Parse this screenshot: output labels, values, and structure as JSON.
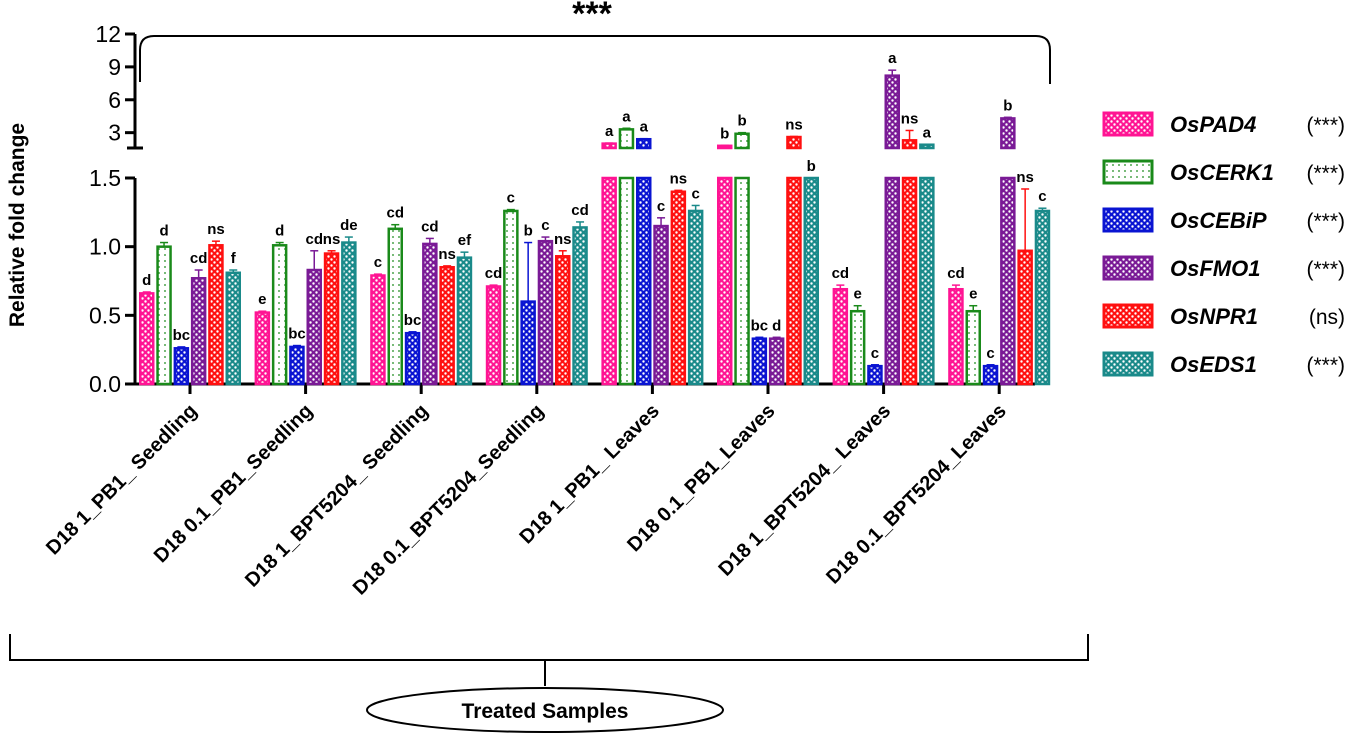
{
  "chart_data": {
    "type": "bar",
    "title": "***",
    "xlabel": "Treated Samples",
    "ylabel": "Relative fold change",
    "y_axis_break": true,
    "ylim_lower": [
      0,
      1.5
    ],
    "ylim_upper": [
      1.6,
      12
    ],
    "yticks_lower": [
      "0.0",
      "0.5",
      "1.0",
      "1.5"
    ],
    "yticks_upper": [
      "3",
      "6",
      "9",
      "12"
    ],
    "categories": [
      "D18 1_PB1_ Seedling",
      "D18 0.1_PB1_Seedling",
      "D18 1_BPT5204_ Seedling",
      "D18 0.1_BPT5204_Seedling",
      "D18 1_PB1_ Leaves",
      "D18 0.1_PB1_Leaves",
      "D18 1_BPT5204_ Leaves",
      "D18 0.1_BPT5204_Leaves"
    ],
    "series": [
      {
        "name": "OsPAD4",
        "significance": "(***)",
        "color": "#ff1493",
        "pattern": "check",
        "values": [
          0.66,
          0.52,
          0.79,
          0.71,
          2.0,
          1.8,
          0.69,
          0.69
        ],
        "errors": [
          0.01,
          0.01,
          0.01,
          0.01,
          0.05,
          0.05,
          0.03,
          0.03
        ],
        "letters": [
          "d",
          "e",
          "c",
          "cd",
          "a",
          "b",
          "cd",
          "cd"
        ]
      },
      {
        "name": "OsCERK1",
        "significance": "(***)",
        "color": "#1a8a1a",
        "pattern": "dots",
        "values": [
          1.0,
          1.01,
          1.13,
          1.26,
          3.3,
          2.9,
          0.53,
          0.53
        ],
        "errors": [
          0.03,
          0.02,
          0.03,
          0.01,
          0.1,
          0.1,
          0.04,
          0.04
        ],
        "letters": [
          "d",
          "d",
          "cd",
          "c",
          "a",
          "b",
          "e",
          "e"
        ]
      },
      {
        "name": "OsCEBiP",
        "significance": "(***)",
        "color": "#0a14d2",
        "pattern": "check",
        "values": [
          0.26,
          0.27,
          0.37,
          0.6,
          2.4,
          0.33,
          0.13,
          0.13
        ],
        "errors": [
          0.01,
          0.01,
          0.01,
          0.43,
          0.05,
          0.01,
          0.01,
          0.01
        ],
        "letters": [
          "bc",
          "bc",
          "bc",
          "b",
          "a",
          "bc",
          "c",
          "c"
        ]
      },
      {
        "name": "OsFMO1",
        "significance": "(***)",
        "color": "#7a1a96",
        "pattern": "check",
        "values": [
          0.77,
          0.83,
          1.02,
          1.04,
          1.15,
          0.33,
          8.2,
          4.3
        ],
        "errors": [
          0.06,
          0.14,
          0.04,
          0.03,
          0.06,
          0.01,
          0.5,
          0.1
        ],
        "letters": [
          "cd",
          "cd",
          "cd",
          "c",
          "c",
          "d",
          "a",
          "b"
        ]
      },
      {
        "name": "OsNPR1",
        "significance": "(ns)",
        "color": "#ff1010",
        "pattern": "check",
        "values": [
          1.01,
          0.95,
          0.85,
          0.93,
          1.4,
          2.6,
          2.3,
          0.97
        ],
        "errors": [
          0.03,
          0.02,
          0.01,
          0.04,
          0.01,
          0.05,
          0.9,
          0.45
        ],
        "letters": [
          "ns",
          "ns",
          "ns",
          "ns",
          "ns",
          "ns",
          "ns",
          "ns"
        ]
      },
      {
        "name": "OsEDS1",
        "significance": "(***)",
        "color": "#1a8a8a",
        "pattern": "check",
        "values": [
          0.81,
          1.03,
          0.92,
          1.14,
          1.26,
          1.55,
          1.9,
          1.26
        ],
        "errors": [
          0.02,
          0.04,
          0.04,
          0.04,
          0.04,
          0.0,
          0.03,
          0.02
        ],
        "letters": [
          "f",
          "de",
          "ef",
          "cd",
          "c",
          "b",
          "a",
          "c"
        ]
      }
    ],
    "legend_position": "right"
  }
}
